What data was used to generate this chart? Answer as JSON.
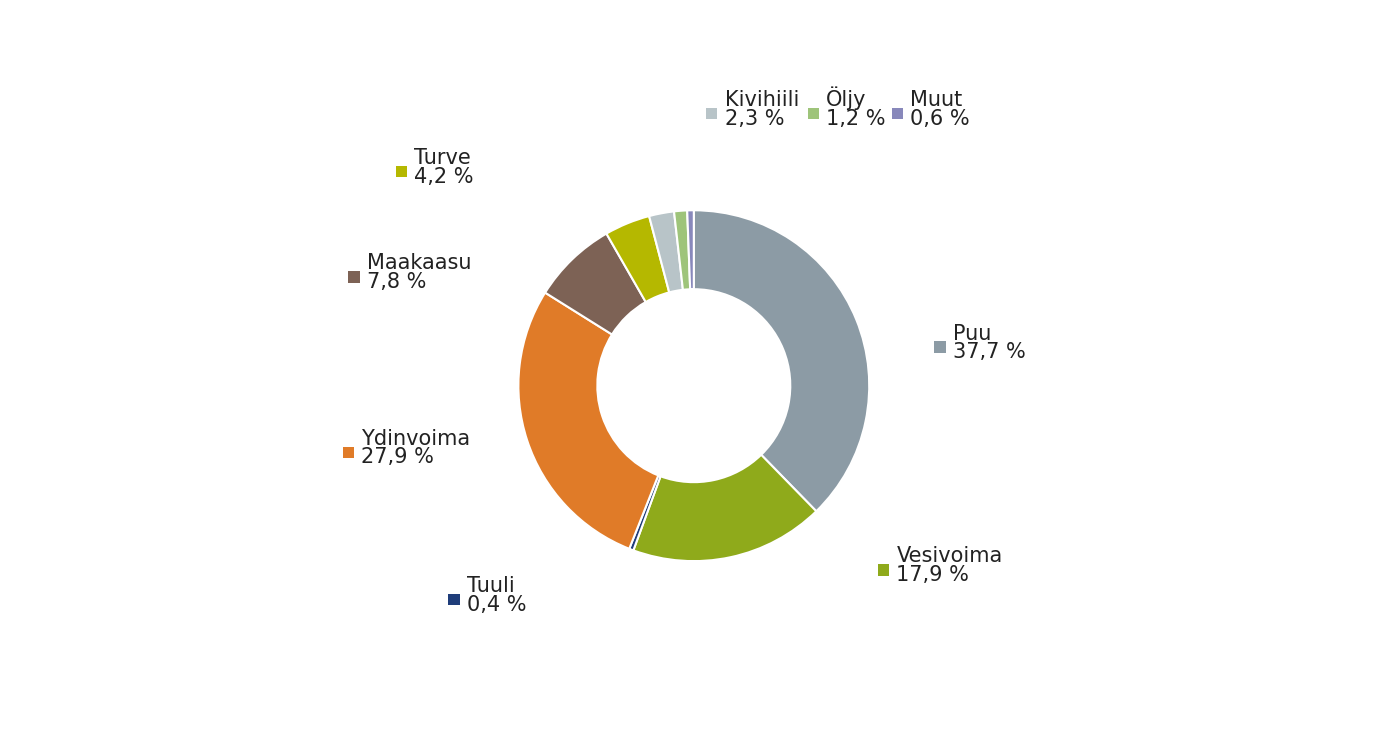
{
  "labels": [
    "Puu",
    "Vesivoima",
    "Tuuli",
    "Ydinvoima",
    "Maakaasu",
    "Turve",
    "Kivihiili",
    "Öljy",
    "Muut"
  ],
  "values": [
    37.7,
    17.9,
    0.4,
    27.9,
    7.8,
    4.2,
    2.3,
    1.2,
    0.6
  ],
  "colors": [
    "#8c9ba5",
    "#8faa1b",
    "#1f3d7a",
    "#e07b28",
    "#7d6255",
    "#b5b800",
    "#b8c4c8",
    "#9ec47a",
    "#8888bb"
  ],
  "background_color": "#ffffff",
  "label_fontsize": 15,
  "legend_fontsize": 14,
  "top_legend_items": [
    "Kivihiili",
    "Öljy",
    "Muut"
  ],
  "top_legend_values": [
    "2,3 %",
    "1,2 %",
    "0,6 %"
  ],
  "side_legend_items_left": [
    "Turve",
    "Maakaasu",
    "Ydinvoima",
    "Tuuli"
  ],
  "side_legend_values_left": [
    "4,2 %",
    "7,8 %",
    "27,9 %",
    "0,4 %"
  ],
  "right_label_items": [
    "Puu",
    "Vesivoima"
  ],
  "right_label_values": [
    "37,7 %",
    "17,9 %"
  ]
}
